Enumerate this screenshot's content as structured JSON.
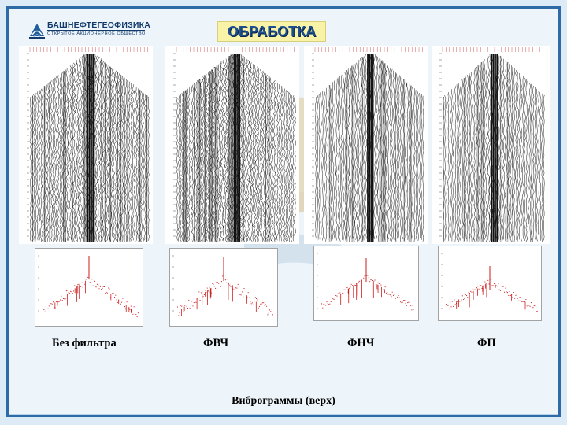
{
  "company": {
    "name": "БАШНЕФТЕГЕОФИЗИКА",
    "subtitle": "ОТКРЫТОЕ АКЦИОНЕРНОЕ ОБЩЕСТВО"
  },
  "slide": {
    "title": "ОБРАБОТКА",
    "caption": "Виброграммы (верх)"
  },
  "panels": [
    {
      "label": "Без фильтра"
    },
    {
      "label": "ФВЧ"
    },
    {
      "label": "ФНЧ"
    },
    {
      "label": "ФП"
    }
  ],
  "colors": {
    "frame": "#2d6aa6",
    "title_bg": "#f9f3a8",
    "title_text": "#1b4f8f",
    "spectrum": "#cc1e1e"
  },
  "icons": [
    "company-logo-icon",
    "watermark-figure-icon"
  ]
}
